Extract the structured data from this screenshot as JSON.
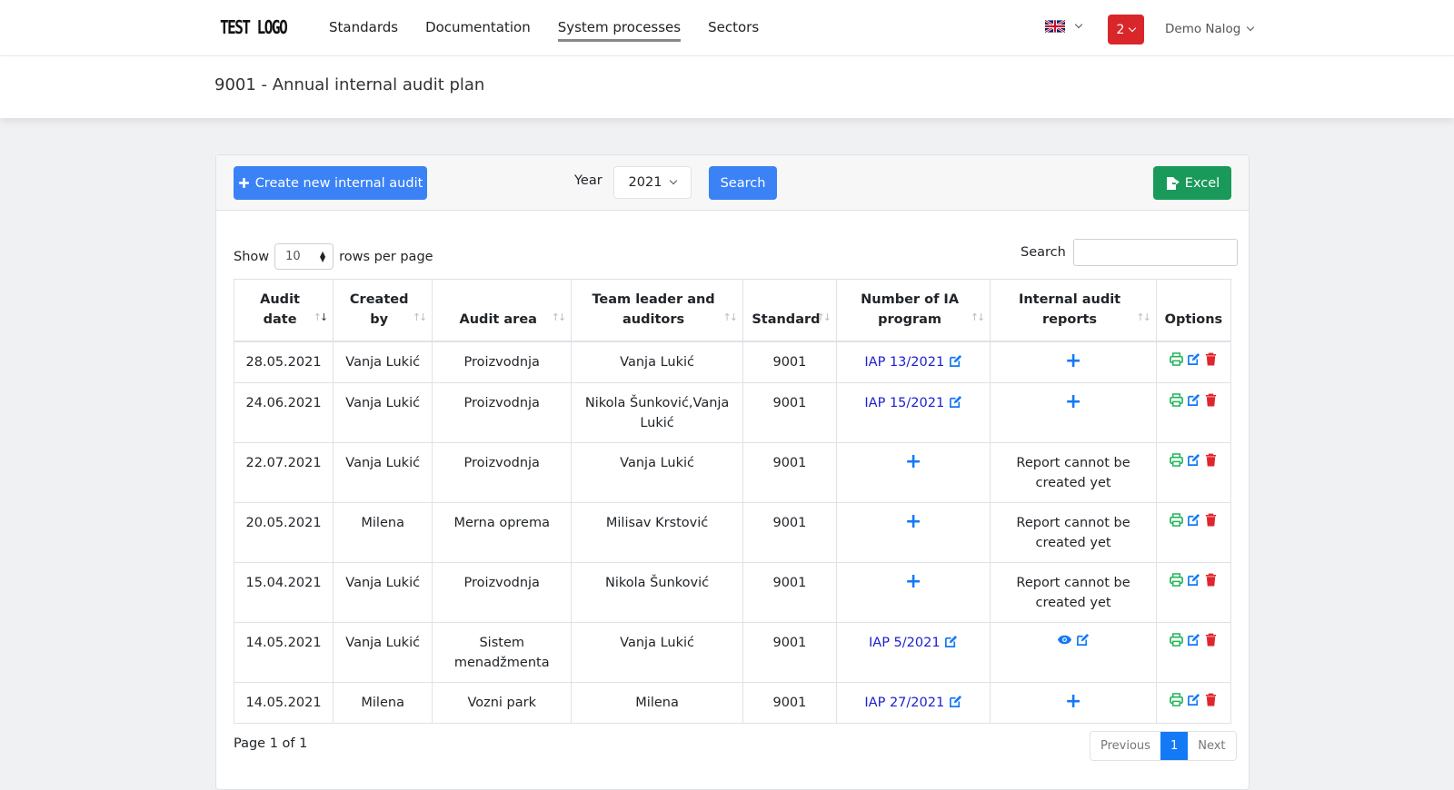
{
  "nav": {
    "logo": "TEST LOGO",
    "links": [
      "Standards",
      "Documentation",
      "System processes",
      "Sectors"
    ],
    "notification_count": "2",
    "account_name": "Demo Nalog"
  },
  "page": {
    "title": "9001 - Annual internal audit plan"
  },
  "toolbar": {
    "create_label": "Create new internal audit",
    "year_label": "Year",
    "year_value": "2021",
    "search_label": "Search",
    "excel_label": "Excel"
  },
  "table_controls": {
    "show_label": "Show",
    "rows_value": "10",
    "rows_suffix": "rows per page",
    "search_label": "Search"
  },
  "columns": [
    "Audit date",
    "Created by",
    "Audit area",
    "Team leader and auditors",
    "Standard",
    "Number of IA program",
    "Internal audit reports",
    "Options"
  ],
  "rows": [
    {
      "date": "28.05.2021",
      "created_by": "Vanja Lukić",
      "area": "Proizvodnja",
      "team": "Vanja Lukić",
      "standard": "9001",
      "program": "IAP 13/2021",
      "report": "",
      "report_state": "add"
    },
    {
      "date": "24.06.2021",
      "created_by": "Vanja Lukić",
      "area": "Proizvodnja",
      "team": "Nikola Šunković,Vanja Lukić",
      "standard": "9001",
      "program": "IAP 15/2021",
      "report": "",
      "report_state": "add"
    },
    {
      "date": "22.07.2021",
      "created_by": "Vanja Lukić",
      "area": "Proizvodnja",
      "team": "Vanja Lukić",
      "standard": "9001",
      "program": "",
      "report": "Report cannot be created yet",
      "report_state": "text"
    },
    {
      "date": "20.05.2021",
      "created_by": "Milena",
      "area": "Merna oprema",
      "team": "Milisav Krstović",
      "standard": "9001",
      "program": "",
      "report": "Report cannot be created yet",
      "report_state": "text"
    },
    {
      "date": "15.04.2021",
      "created_by": "Vanja Lukić",
      "area": "Proizvodnja",
      "team": "Nikola Šunković",
      "standard": "9001",
      "program": "",
      "report": "Report cannot be created yet",
      "report_state": "text"
    },
    {
      "date": "14.05.2021",
      "created_by": "Vanja Lukić",
      "area": "Sistem menadžmenta",
      "team": "Vanja Lukić",
      "standard": "9001",
      "program": "IAP 5/2021",
      "report": "",
      "report_state": "view"
    },
    {
      "date": "14.05.2021",
      "created_by": "Milena",
      "area": "Vozni park",
      "team": "Milena",
      "standard": "9001",
      "program": "IAP 27/2021",
      "report": "",
      "report_state": "add"
    }
  ],
  "pagination": {
    "info": "Page 1 of 1",
    "previous": "Previous",
    "current": "1",
    "next": "Next"
  },
  "colors": {
    "primary": "#3a82f6",
    "success": "#199a5a",
    "danger": "#d9262b",
    "link": "#1e20d0",
    "icon_blue": "#1479f5",
    "icon_green": "#22b55a",
    "icon_red": "#e0262b"
  }
}
